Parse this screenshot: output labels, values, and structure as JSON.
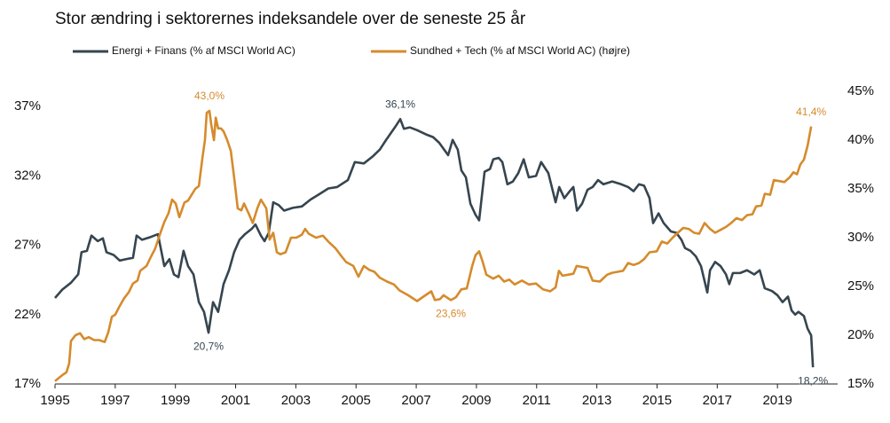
{
  "chart_data": {
    "type": "line",
    "title": "Stor ændring i sektorernes indeksandele over de seneste 25 år",
    "xlim": [
      1995,
      2021
    ],
    "xticks": [
      1995,
      1997,
      1999,
      2001,
      2003,
      2005,
      2007,
      2009,
      2011,
      2013,
      2015,
      2017,
      2019
    ],
    "ylim": [
      17,
      38.1
    ],
    "yticks": [
      {
        "value": 17,
        "label": "17%"
      },
      {
        "value": 22,
        "label": "22%"
      },
      {
        "value": 27,
        "label": "27%"
      },
      {
        "value": 32,
        "label": "32%"
      },
      {
        "value": 37,
        "label": "37%"
      }
    ],
    "y2lim": [
      15,
      45
    ],
    "y2ticks": [
      {
        "value": 15,
        "label": "15%"
      },
      {
        "value": 20,
        "label": "20%"
      },
      {
        "value": 25,
        "label": "25%"
      },
      {
        "value": 30,
        "label": "30%"
      },
      {
        "value": 35,
        "label": "35%"
      },
      {
        "value": 40,
        "label": "40%"
      },
      {
        "value": 45,
        "label": "45%"
      }
    ],
    "series": [
      {
        "name": "Energi + Finans (% af MSCI World AC)",
        "color": "#36454f",
        "axis": "y",
        "x": [
          1995.0,
          1995.24,
          1995.53,
          1995.77,
          1995.88,
          1996.06,
          1996.21,
          1996.42,
          1996.59,
          1996.71,
          1996.95,
          1997.15,
          1997.36,
          1997.59,
          1997.71,
          1997.89,
          1998.18,
          1998.42,
          1998.63,
          1998.8,
          1998.95,
          1999.1,
          1999.27,
          1999.42,
          1999.6,
          1999.78,
          1999.95,
          2000.1,
          2000.25,
          2000.42,
          2000.6,
          2000.78,
          2000.95,
          2001.13,
          2001.31,
          2001.54,
          2001.66,
          2001.84,
          2001.96,
          2002.1,
          2002.25,
          2002.43,
          2002.61,
          2002.9,
          2003.2,
          2003.49,
          2003.79,
          2004.08,
          2004.37,
          2004.73,
          2004.96,
          2005.26,
          2005.55,
          2005.79,
          2006.0,
          2006.29,
          2006.47,
          2006.59,
          2006.79,
          2007.03,
          2007.32,
          2007.56,
          2007.76,
          2008.06,
          2008.21,
          2008.38,
          2008.5,
          2008.65,
          2008.8,
          2008.97,
          2009.09,
          2009.27,
          2009.45,
          2009.56,
          2009.74,
          2009.86,
          2010.03,
          2010.21,
          2010.39,
          2010.57,
          2010.74,
          2010.98,
          2011.15,
          2011.39,
          2011.63,
          2011.75,
          2011.92,
          2012.1,
          2012.22,
          2012.34,
          2012.51,
          2012.69,
          2012.86,
          2013.04,
          2013.22,
          2013.51,
          2013.81,
          2014.04,
          2014.22,
          2014.4,
          2014.57,
          2014.75,
          2014.87,
          2015.05,
          2015.22,
          2015.46,
          2015.64,
          2015.81,
          2015.93,
          2016.11,
          2016.29,
          2016.46,
          2016.67,
          2016.76,
          2016.93,
          2017.11,
          2017.29,
          2017.4,
          2017.52,
          2017.76,
          2017.99,
          2018.23,
          2018.41,
          2018.58,
          2018.82,
          2019.0,
          2019.17,
          2019.35,
          2019.47,
          2019.59,
          2019.7,
          2019.88,
          2020.0,
          2020.12,
          2020.18
        ],
        "values": [
          23.2,
          23.8,
          24.3,
          24.9,
          26.5,
          26.6,
          27.7,
          27.3,
          27.5,
          26.5,
          26.3,
          25.9,
          26.0,
          26.1,
          27.7,
          27.4,
          27.6,
          27.8,
          25.5,
          26.0,
          24.9,
          24.7,
          26.6,
          25.5,
          24.9,
          22.9,
          22.2,
          20.7,
          22.9,
          22.2,
          24.2,
          25.2,
          26.5,
          27.4,
          27.8,
          28.2,
          28.5,
          27.7,
          27.3,
          27.9,
          30.1,
          29.9,
          29.5,
          29.7,
          29.8,
          30.3,
          30.7,
          31.1,
          31.2,
          31.7,
          33.0,
          32.9,
          33.4,
          33.9,
          34.6,
          35.5,
          36.1,
          35.4,
          35.5,
          35.3,
          35.0,
          34.8,
          34.4,
          33.5,
          34.6,
          33.9,
          32.4,
          31.9,
          30.0,
          29.2,
          28.8,
          32.3,
          32.5,
          33.2,
          33.3,
          33.0,
          31.4,
          31.6,
          32.2,
          33.2,
          31.9,
          32.0,
          33.0,
          32.2,
          30.1,
          31.2,
          30.4,
          30.9,
          31.2,
          29.5,
          30.0,
          31.0,
          31.2,
          31.7,
          31.4,
          31.6,
          31.4,
          31.2,
          30.9,
          31.4,
          31.3,
          30.4,
          28.6,
          29.3,
          28.6,
          28.0,
          27.9,
          27.4,
          26.8,
          26.6,
          26.2,
          25.5,
          23.6,
          25.2,
          25.8,
          25.5,
          24.9,
          24.2,
          25.0,
          25.0,
          25.2,
          24.9,
          25.2,
          23.9,
          23.7,
          23.4,
          22.9,
          23.3,
          22.3,
          22.0,
          22.2,
          21.9,
          21.0,
          20.5,
          18.2
        ],
        "annotations": [
          {
            "x": 2006.47,
            "value": 36.1,
            "label": "36,1%"
          },
          {
            "x": 2000.1,
            "value": 20.7,
            "label": "20,7%"
          },
          {
            "x": 2020.18,
            "value": 18.2,
            "label": "18,2%"
          }
        ]
      },
      {
        "name": "Sundhed + Tech (% af MSCI World AC) (højre)",
        "color": "#d58b2c",
        "axis": "y2",
        "x": [
          1995.0,
          1995.12,
          1995.24,
          1995.38,
          1995.47,
          1995.53,
          1995.68,
          1995.83,
          1995.97,
          1996.12,
          1996.3,
          1996.47,
          1996.65,
          1996.77,
          1996.89,
          1997.0,
          1997.15,
          1997.3,
          1997.45,
          1997.59,
          1997.74,
          1997.83,
          1998.04,
          1998.18,
          1998.33,
          1998.48,
          1998.63,
          1998.77,
          1998.89,
          1999.01,
          1999.13,
          1999.3,
          1999.42,
          1999.54,
          1999.66,
          1999.78,
          1999.89,
          1999.98,
          2000.04,
          2000.13,
          2000.19,
          2000.28,
          2000.34,
          2000.42,
          2000.51,
          2000.6,
          2000.72,
          2000.84,
          2000.95,
          2001.07,
          2001.19,
          2001.28,
          2001.43,
          2001.57,
          2001.72,
          2001.84,
          2002.02,
          2002.13,
          2002.25,
          2002.37,
          2002.49,
          2002.66,
          2002.84,
          2003.02,
          2003.2,
          2003.31,
          2003.43,
          2003.67,
          2003.9,
          2004.08,
          2004.32,
          2004.49,
          2004.67,
          2004.91,
          2005.08,
          2005.26,
          2005.44,
          2005.61,
          2005.79,
          2006.03,
          2006.26,
          2006.44,
          2006.73,
          2007.03,
          2007.26,
          2007.5,
          2007.62,
          2007.79,
          2007.91,
          2008.15,
          2008.32,
          2008.5,
          2008.68,
          2008.86,
          2008.97,
          2009.09,
          2009.21,
          2009.33,
          2009.56,
          2009.74,
          2009.92,
          2010.09,
          2010.27,
          2010.51,
          2010.74,
          2010.98,
          2011.21,
          2011.45,
          2011.63,
          2011.74,
          2011.86,
          2012.04,
          2012.22,
          2012.33,
          2012.51,
          2012.69,
          2012.86,
          2013.1,
          2013.34,
          2013.51,
          2013.69,
          2013.87,
          2014.04,
          2014.22,
          2014.4,
          2014.57,
          2014.75,
          2014.99,
          2015.16,
          2015.34,
          2015.52,
          2015.69,
          2015.87,
          2016.05,
          2016.23,
          2016.4,
          2016.58,
          2016.76,
          2016.93,
          2017.11,
          2017.29,
          2017.46,
          2017.64,
          2017.82,
          2017.99,
          2018.17,
          2018.29,
          2018.47,
          2018.58,
          2018.76,
          2018.88,
          2019.06,
          2019.23,
          2019.41,
          2019.53,
          2019.65,
          2019.76,
          2019.88,
          2020.0,
          2020.12
        ],
        "values": [
          15.3,
          15.6,
          15.9,
          16.2,
          17.1,
          19.4,
          20.0,
          20.2,
          19.6,
          19.8,
          19.5,
          19.5,
          19.3,
          20.3,
          21.9,
          22.1,
          23.0,
          23.8,
          24.4,
          25.3,
          25.6,
          26.6,
          27.1,
          28.0,
          28.9,
          30.3,
          31.6,
          32.5,
          33.9,
          33.5,
          32.1,
          33.6,
          33.8,
          34.4,
          35.0,
          35.3,
          38.0,
          40.0,
          42.8,
          43.0,
          41.6,
          40.0,
          42.3,
          41.2,
          41.2,
          40.9,
          40.0,
          38.9,
          36.2,
          33.0,
          32.8,
          33.5,
          32.5,
          31.5,
          33.0,
          33.9,
          33.0,
          29.8,
          30.5,
          28.5,
          28.3,
          28.5,
          30.0,
          30.0,
          30.3,
          30.9,
          30.4,
          30.0,
          30.2,
          29.6,
          28.9,
          28.2,
          27.5,
          27.1,
          26.0,
          27.1,
          26.7,
          26.5,
          25.9,
          25.5,
          25.2,
          24.6,
          24.1,
          23.5,
          24.0,
          24.5,
          23.6,
          23.7,
          24.1,
          23.6,
          23.9,
          24.7,
          24.8,
          27.1,
          28.2,
          28.6,
          27.5,
          26.2,
          25.8,
          26.1,
          25.5,
          25.7,
          25.2,
          25.6,
          25.2,
          25.3,
          24.7,
          24.5,
          24.9,
          26.6,
          26.1,
          26.2,
          26.3,
          27.1,
          27.0,
          26.9,
          25.6,
          25.5,
          26.2,
          26.4,
          26.5,
          26.6,
          27.4,
          27.2,
          27.4,
          27.8,
          28.5,
          28.6,
          29.6,
          29.4,
          30.0,
          30.5,
          31.0,
          30.9,
          30.5,
          30.4,
          31.5,
          30.9,
          30.5,
          30.8,
          31.1,
          31.5,
          32.0,
          31.8,
          32.3,
          32.4,
          33.2,
          33.3,
          34.5,
          34.4,
          35.9,
          35.8,
          35.7,
          36.2,
          36.7,
          36.5,
          37.5,
          38.0,
          39.4,
          41.4
        ],
        "annotations": [
          {
            "x": 2000.13,
            "value": 43.0,
            "label": "43,0%"
          },
          {
            "x": 2008.15,
            "value": 23.6,
            "label": "23,6%"
          },
          {
            "x": 2020.12,
            "value": 41.4,
            "label": "41,4%"
          }
        ]
      }
    ]
  }
}
